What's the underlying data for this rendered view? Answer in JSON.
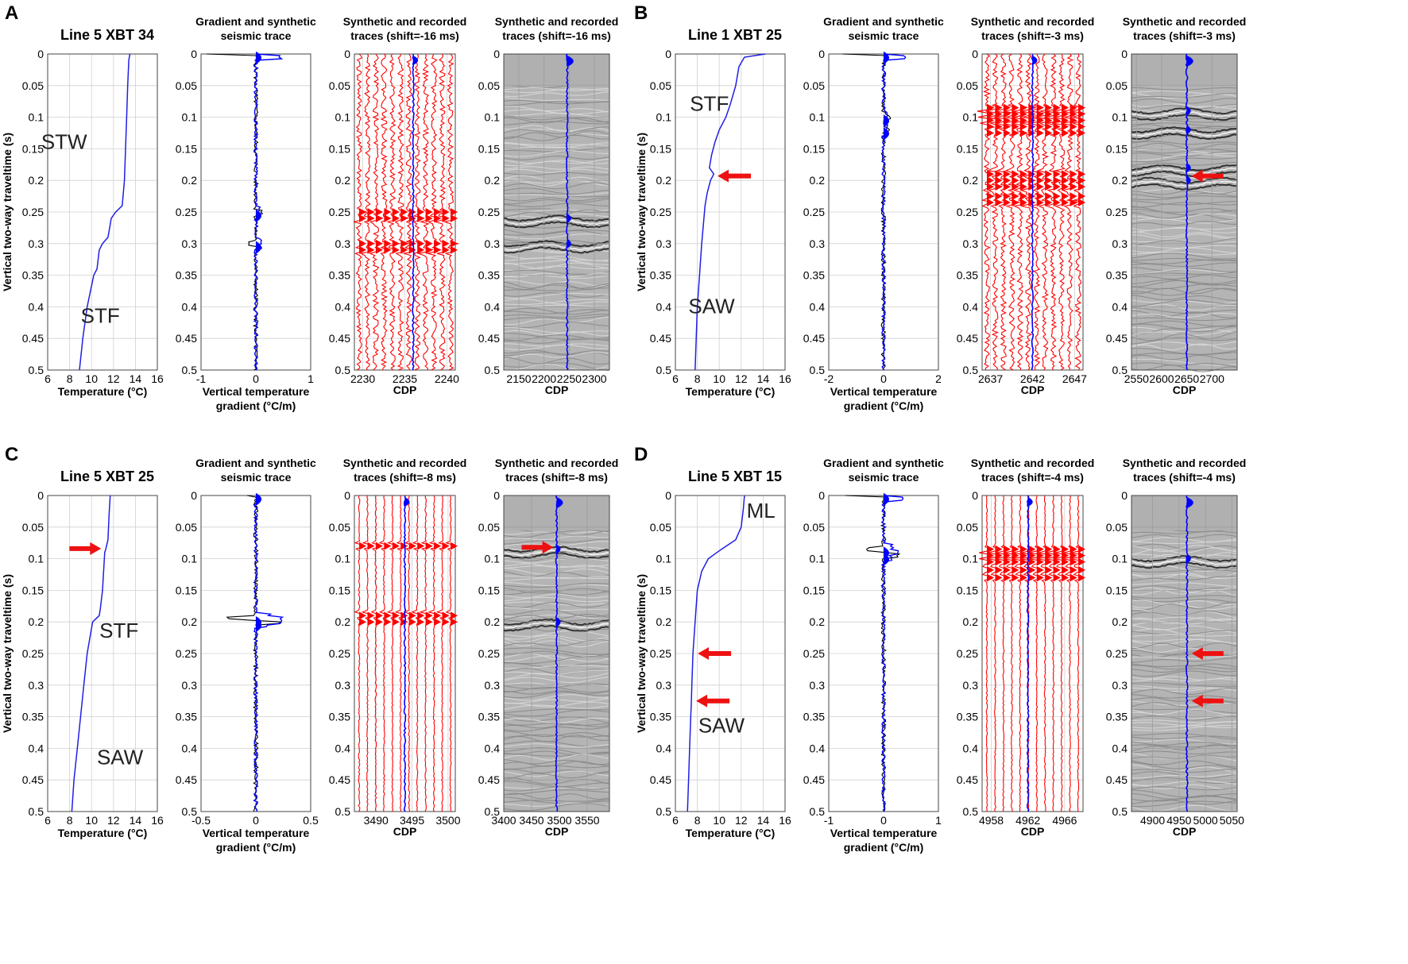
{
  "figure": {
    "shared_ylabel": "Vertical two-way traveltime (s)",
    "y_ticks": [
      "0",
      "0.05",
      "0.1",
      "0.15",
      "0.2",
      "0.25",
      "0.3",
      "0.35",
      "0.4",
      "0.45",
      "0.5"
    ],
    "gradient_title": [
      "Gradient and synthetic",
      "seismic trace"
    ],
    "temperature_xlabel": "Temperature (°C)",
    "gradient_xlabel": [
      "Vertical temperature",
      "gradient (°C/m)"
    ],
    "cdp_xlabel": "CDP"
  },
  "colors": {
    "temperature": "#1f1fe6",
    "synthetic": "#0000ff",
    "recorded": "#ff0000",
    "arrow": "#ee1111",
    "seismic_bg": "#b4b4b4",
    "grid": "#d0d0d0"
  },
  "chart_data": [
    {
      "panel": "A",
      "type": "line",
      "title": "Line 5 XBT 34",
      "xlabel": "Temperature (°C)",
      "ylabel": "Vertical two-way traveltime (s)",
      "xlim": [
        6,
        16
      ],
      "ylim": [
        0,
        0.5
      ],
      "x_ticks": [
        "6",
        "8",
        "10",
        "12",
        "14",
        "16"
      ],
      "temperature_profile": {
        "t": [
          0,
          0.01,
          0.05,
          0.1,
          0.15,
          0.2,
          0.24,
          0.25,
          0.26,
          0.27,
          0.29,
          0.3,
          0.31,
          0.34,
          0.35,
          0.4,
          0.45,
          0.5
        ],
        "temp": [
          13.5,
          13.4,
          13.3,
          13.2,
          13.1,
          13.0,
          12.8,
          12.2,
          11.8,
          11.7,
          11.5,
          11.0,
          10.7,
          10.5,
          10.2,
          9.6,
          9.2,
          8.9
        ]
      },
      "water_masses": [
        {
          "label": "STW",
          "temp": 7.5,
          "t": 0.15
        },
        {
          "label": "STF",
          "temp": 10.8,
          "t": 0.425
        }
      ],
      "arrows_t": [],
      "gradient_panel": {
        "xlim": [
          -1,
          1
        ],
        "x_ticks": [
          "-1",
          "0",
          "1"
        ],
        "spikes": [
          [
            0,
            -0.9
          ],
          [
            0.25,
            0.12
          ],
          [
            0.3,
            -0.15
          ]
        ]
      },
      "synthetic_panel": {
        "title": [
          "Synthetic and recorded",
          "traces (shift=-16 ms)"
        ],
        "xlim": [
          2229,
          2241
        ],
        "x_ticks": [
          "2230",
          "2235",
          "2240"
        ],
        "trace_count": 12,
        "blue_trace_cdp": 2236,
        "events_t": [
          0.25,
          0.26,
          0.3,
          0.31
        ],
        "busy": true
      },
      "seismic_panel": {
        "title": [
          "Synthetic and recorded",
          "traces (shift=-16 ms)"
        ],
        "xlim": [
          2120,
          2330
        ],
        "x_ticks": [
          "2150",
          "2200",
          "2250",
          "2300"
        ],
        "blue_trace_cdp": 2246,
        "header_end_t": 0.05,
        "events_t": [
          0.26,
          0.3
        ],
        "arrows_t": []
      }
    },
    {
      "panel": "B",
      "type": "line",
      "title": "Line 1 XBT 25",
      "xlabel": "Temperature (°C)",
      "ylabel": "Vertical two-way traveltime (s)",
      "xlim": [
        6,
        16
      ],
      "ylim": [
        0,
        0.5
      ],
      "x_ticks": [
        "6",
        "8",
        "10",
        "12",
        "14",
        "16"
      ],
      "temperature_profile": {
        "t": [
          0,
          0.005,
          0.02,
          0.05,
          0.08,
          0.1,
          0.12,
          0.14,
          0.16,
          0.18,
          0.19,
          0.2,
          0.22,
          0.24,
          0.3,
          0.35,
          0.4,
          0.45,
          0.5
        ],
        "temp": [
          14.2,
          12.3,
          11.8,
          11.5,
          11.0,
          10.6,
          10.0,
          9.6,
          9.3,
          9.1,
          9.5,
          9.2,
          8.9,
          8.7,
          8.4,
          8.2,
          8.0,
          7.9,
          7.8
        ]
      },
      "water_masses": [
        {
          "label": "STF",
          "temp": 9.1,
          "t": 0.09
        },
        {
          "label": "SAW",
          "temp": 9.3,
          "t": 0.41
        }
      ],
      "arrows_t": [
        0.193
      ],
      "gradient_panel": {
        "xlim": [
          -2,
          2
        ],
        "x_ticks": [
          "-2",
          "0",
          "2"
        ],
        "spikes": [
          [
            0,
            -1.5
          ],
          [
            0.1,
            0.25
          ],
          [
            0.12,
            0.2
          ]
        ]
      },
      "synthetic_panel": {
        "title": [
          "Synthetic and recorded",
          "traces (shift=-3 ms)"
        ],
        "xlim": [
          2636,
          2648
        ],
        "x_ticks": [
          "2637",
          "2642",
          "2647"
        ],
        "trace_count": 12,
        "blue_trace_cdp": 2642,
        "events_t": [
          0.085,
          0.095,
          0.105,
          0.115,
          0.125,
          0.19,
          0.2,
          0.21,
          0.225,
          0.235
        ],
        "busy": true
      },
      "seismic_panel": {
        "title": [
          "Synthetic and recorded",
          "traces (shift=-3 ms)"
        ],
        "xlim": [
          2540,
          2750
        ],
        "x_ticks": [
          "2550",
          "2600",
          "2650",
          "2700"
        ],
        "blue_trace_cdp": 2650,
        "header_end_t": 0.05,
        "events_t": [
          0.09,
          0.12,
          0.18,
          0.2
        ],
        "arrows_t": [
          0.193
        ]
      }
    },
    {
      "panel": "C",
      "type": "line",
      "title": "Line 5 XBT 25",
      "xlabel": "Temperature (°C)",
      "ylabel": "Vertical two-way traveltime (s)",
      "xlim": [
        6,
        16
      ],
      "ylim": [
        0,
        0.5
      ],
      "x_ticks": [
        "6",
        "8",
        "10",
        "12",
        "14",
        "16"
      ],
      "temperature_profile": {
        "t": [
          0,
          0.03,
          0.07,
          0.085,
          0.09,
          0.12,
          0.15,
          0.18,
          0.19,
          0.2,
          0.21,
          0.25,
          0.3,
          0.35,
          0.4,
          0.45,
          0.5
        ],
        "temp": [
          11.7,
          11.6,
          11.5,
          11.3,
          11.2,
          11.1,
          11.0,
          10.8,
          10.7,
          10.1,
          10.0,
          9.6,
          9.3,
          9.0,
          8.7,
          8.4,
          8.2
        ]
      },
      "water_masses": [
        {
          "label": "STF",
          "temp": 12.5,
          "t": 0.225
        },
        {
          "label": "SAW",
          "temp": 12.6,
          "t": 0.425
        }
      ],
      "arrows_t": [
        0.084
      ],
      "gradient_panel": {
        "xlim": [
          -0.5,
          0.5
        ],
        "x_ticks": [
          "-0.5",
          "0",
          "0.5"
        ],
        "spikes": [
          [
            0,
            -0.08
          ],
          [
            0.195,
            -0.25
          ],
          [
            0.2,
            0.22
          ]
        ]
      },
      "synthetic_panel": {
        "title": [
          "Synthetic and recorded",
          "traces (shift=-8 ms)"
        ],
        "xlim": [
          3487,
          3501
        ],
        "x_ticks": [
          "3490",
          "3495",
          "3500"
        ],
        "trace_count": 12,
        "blue_trace_cdp": 3494,
        "events_t": [
          0.08,
          0.19,
          0.2
        ],
        "busy": false
      },
      "seismic_panel": {
        "title": [
          "Synthetic and recorded",
          "traces (shift=-8 ms)"
        ],
        "xlim": [
          3400,
          3590
        ],
        "x_ticks": [
          "3400",
          "3450",
          "3500",
          "3550"
        ],
        "blue_trace_cdp": 3495,
        "header_end_t": 0.055,
        "events_t": [
          0.085,
          0.2
        ],
        "arrows_t": [
          0.082
        ]
      }
    },
    {
      "panel": "D",
      "type": "line",
      "title": "Line 5 XBT 15",
      "xlabel": "Temperature (°C)",
      "ylabel": "Vertical two-way traveltime (s)",
      "xlim": [
        6,
        16
      ],
      "ylim": [
        0,
        0.5
      ],
      "x_ticks": [
        "6",
        "8",
        "10",
        "12",
        "14",
        "16"
      ],
      "temperature_profile": {
        "t": [
          0,
          0.02,
          0.05,
          0.07,
          0.085,
          0.1,
          0.12,
          0.15,
          0.2,
          0.25,
          0.3,
          0.33,
          0.35,
          0.4,
          0.45,
          0.5
        ],
        "temp": [
          12.3,
          12.2,
          12.0,
          11.5,
          10.2,
          9.0,
          8.4,
          8.0,
          7.8,
          7.6,
          7.5,
          7.45,
          7.4,
          7.3,
          7.2,
          7.1
        ]
      },
      "water_masses": [
        {
          "label": "ML",
          "temp": 13.8,
          "t": 0.035
        },
        {
          "label": "SAW",
          "temp": 10.2,
          "t": 0.375
        }
      ],
      "arrows_t": [
        0.25,
        0.325
      ],
      "gradient_panel": {
        "xlim": [
          -1,
          1
        ],
        "x_ticks": [
          "-1",
          "0",
          "1"
        ],
        "spikes": [
          [
            0,
            -0.7
          ],
          [
            0.085,
            -0.3
          ],
          [
            0.095,
            0.25
          ]
        ]
      },
      "synthetic_panel": {
        "title": [
          "Synthetic and recorded",
          "traces (shift=-4 ms)"
        ],
        "xlim": [
          4957,
          4968
        ],
        "x_ticks": [
          "4958",
          "4962",
          "4966"
        ],
        "trace_count": 12,
        "blue_trace_cdp": 4962,
        "events_t": [
          0.085,
          0.095,
          0.105,
          0.118,
          0.13
        ],
        "busy": false
      },
      "seismic_panel": {
        "title": [
          "Synthetic and recorded",
          "traces (shift=-4 ms)"
        ],
        "xlim": [
          4860,
          5060
        ],
        "x_ticks": [
          "4900",
          "4950",
          "5000",
          "5050"
        ],
        "blue_trace_cdp": 4965,
        "header_end_t": 0.055,
        "events_t": [
          0.1
        ],
        "arrows_t": [
          0.25,
          0.325
        ]
      }
    }
  ]
}
